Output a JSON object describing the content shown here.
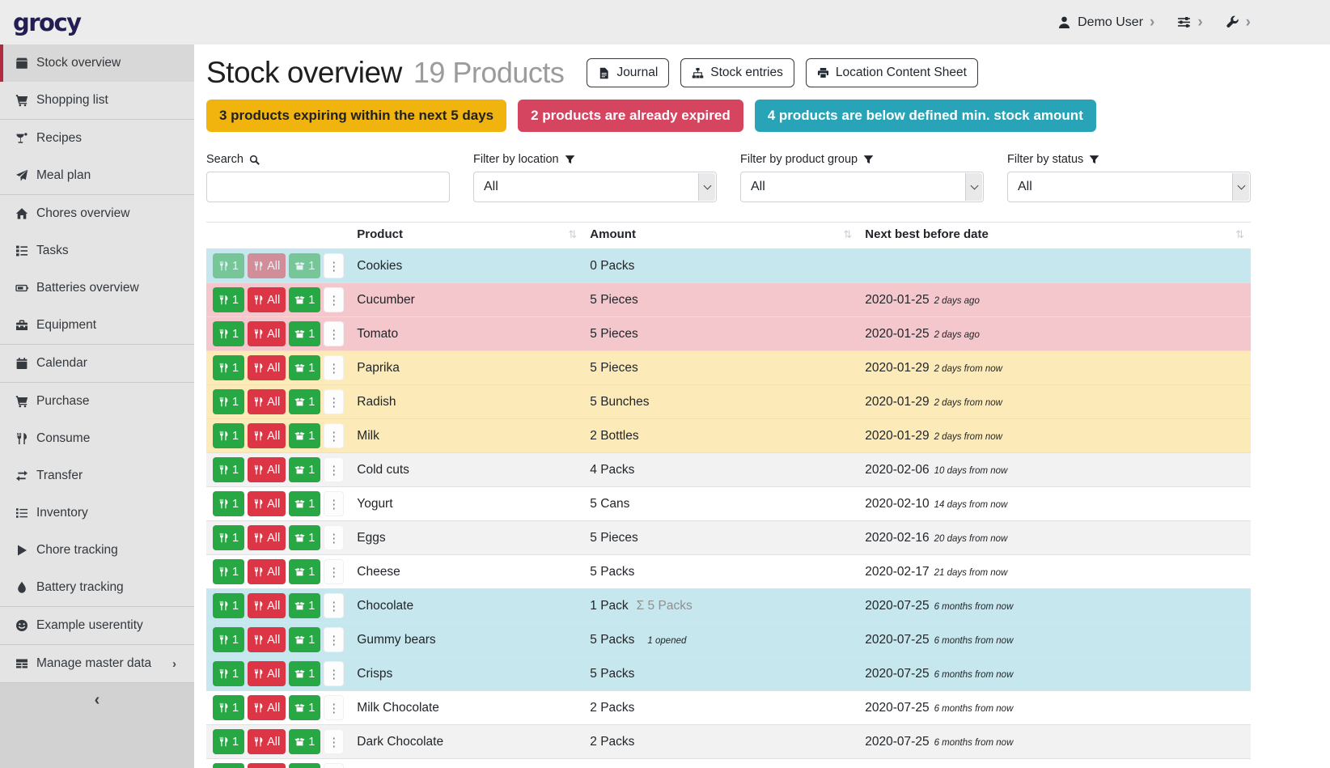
{
  "navbar": {
    "brand": "grocy",
    "user_label": "Demo User"
  },
  "icons": {
    "chevron_right": "›",
    "chevron_left": "‹",
    "ellipsis_v": "⋮",
    "sort": "⇅"
  },
  "sidebar": {
    "items": [
      {
        "label": "Stock overview",
        "icon": "box-icon",
        "active": true
      },
      {
        "label": "Shopping list",
        "icon": "cart-icon",
        "divider_after": true
      },
      {
        "label": "Recipes",
        "icon": "cocktail-icon"
      },
      {
        "label": "Meal plan",
        "icon": "paper-plane-icon",
        "divider_after": true
      },
      {
        "label": "Chores overview",
        "icon": "home-icon"
      },
      {
        "label": "Tasks",
        "icon": "tasks-icon"
      },
      {
        "label": "Batteries overview",
        "icon": "battery-icon"
      },
      {
        "label": "Equipment",
        "icon": "toolbox-icon",
        "divider_after": true
      },
      {
        "label": "Calendar",
        "icon": "calendar-icon",
        "divider_after": true
      },
      {
        "label": "Purchase",
        "icon": "cart-icon"
      },
      {
        "label": "Consume",
        "icon": "utensils-icon"
      },
      {
        "label": "Transfer",
        "icon": "transfer-icon"
      },
      {
        "label": "Inventory",
        "icon": "list-icon"
      },
      {
        "label": "Chore tracking",
        "icon": "play-icon"
      },
      {
        "label": "Battery tracking",
        "icon": "drop-icon",
        "divider_after": true
      },
      {
        "label": "Example userentity",
        "icon": "smiley-icon",
        "divider_after": true
      },
      {
        "label": "Manage master data",
        "icon": "table-icon",
        "chevron": true,
        "divider_after": true
      }
    ]
  },
  "header": {
    "title": "Stock overview",
    "subtitle": "19 Products",
    "buttons": [
      {
        "label": "Journal",
        "icon": "file-icon"
      },
      {
        "label": "Stock entries",
        "icon": "sitemap-icon"
      },
      {
        "label": "Location Content Sheet",
        "icon": "print-icon"
      }
    ]
  },
  "summary_badges": [
    {
      "label": "3 products expiring within the next 5 days",
      "bg": "#f1b30e",
      "fg": "#212121"
    },
    {
      "label": "2 products are already expired",
      "bg": "#d6455f",
      "fg": "#ffffff"
    },
    {
      "label": "4 products are below defined min. stock amount",
      "bg": "#29a3b7",
      "fg": "#ffffff"
    }
  ],
  "filters": {
    "search": {
      "label": "Search",
      "value": "",
      "icon": "search-icon"
    },
    "selects": [
      {
        "label": "Filter by location",
        "value": "All",
        "icon": "filter-icon"
      },
      {
        "label": "Filter by product group",
        "value": "All",
        "icon": "filter-icon"
      },
      {
        "label": "Filter by status",
        "value": "All",
        "icon": "filter-icon"
      }
    ]
  },
  "table": {
    "columns": [
      "Product",
      "Amount",
      "Next best before date"
    ],
    "row_buttons": {
      "consume_one": "1",
      "consume_all": "All",
      "open_one": "1"
    },
    "rows": [
      {
        "product": "Cookies",
        "amount": "0 Packs",
        "date": "",
        "date_rel": "",
        "status": "info",
        "buttons_disabled": true
      },
      {
        "product": "Cucumber",
        "amount": "5 Pieces",
        "date": "2020-01-25",
        "date_rel": "2 days ago",
        "status": "danger"
      },
      {
        "product": "Tomato",
        "amount": "5 Pieces",
        "date": "2020-01-25",
        "date_rel": "2 days ago",
        "status": "danger"
      },
      {
        "product": "Paprika",
        "amount": "5 Pieces",
        "date": "2020-01-29",
        "date_rel": "2 days from now",
        "status": "warning"
      },
      {
        "product": "Radish",
        "amount": "5 Bunches",
        "date": "2020-01-29",
        "date_rel": "2 days from now",
        "status": "warning"
      },
      {
        "product": "Milk",
        "amount": "2 Bottles",
        "date": "2020-01-29",
        "date_rel": "2 days from now",
        "status": "warning"
      },
      {
        "product": "Cold cuts",
        "amount": "4 Packs",
        "date": "2020-02-06",
        "date_rel": "10 days from now",
        "status": ""
      },
      {
        "product": "Yogurt",
        "amount": "5 Cans",
        "date": "2020-02-10",
        "date_rel": "14 days from now",
        "status": ""
      },
      {
        "product": "Eggs",
        "amount": "5 Pieces",
        "date": "2020-02-16",
        "date_rel": "20 days from now",
        "status": ""
      },
      {
        "product": "Cheese",
        "amount": "5 Packs",
        "date": "2020-02-17",
        "date_rel": "21 days from now",
        "status": ""
      },
      {
        "product": "Chocolate",
        "amount": "1 Pack",
        "amount_sum": "Σ 5 Packs",
        "date": "2020-07-25",
        "date_rel": "6 months from now",
        "status": "info"
      },
      {
        "product": "Gummy bears",
        "amount": "5 Packs",
        "amount_note": "1 opened",
        "date": "2020-07-25",
        "date_rel": "6 months from now",
        "status": "info"
      },
      {
        "product": "Crisps",
        "amount": "5 Packs",
        "date": "2020-07-25",
        "date_rel": "6 months from now",
        "status": "info"
      },
      {
        "product": "Milk Chocolate",
        "amount": "2 Packs",
        "date": "2020-07-25",
        "date_rel": "6 months from now",
        "status": ""
      },
      {
        "product": "Dark Chocolate",
        "amount": "2 Packs",
        "date": "2020-07-25",
        "date_rel": "6 months from now",
        "status": ""
      },
      {
        "product": "",
        "amount": "",
        "date": "",
        "date_rel": "",
        "status": "",
        "partial": true
      }
    ]
  },
  "colors": {
    "brand_text": "#221d52",
    "sidebar_active_bar": "#ae2c3e",
    "row_info": "#c6e7ee",
    "row_danger": "#f4c7cd",
    "row_warning": "#fdeab9",
    "row_stripe": "#f2f2f2",
    "button_green": "#28a745",
    "button_red": "#dc3545"
  }
}
